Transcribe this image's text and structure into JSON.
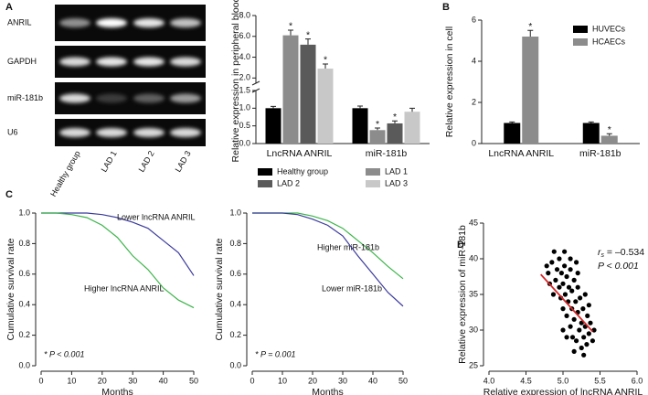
{
  "panel_labels": [
    "A",
    "B",
    "C",
    "D"
  ],
  "gel": {
    "rows": [
      "ANRIL",
      "GAPDH",
      "miR-181b",
      "U6"
    ],
    "lanes": [
      "Healthy group",
      "LAD 1",
      "LAD 2",
      "LAD 3"
    ]
  },
  "chart_data": [
    {
      "type": "bar",
      "ylabel": "Relative expression in peripheral blood",
      "categories": [
        "LncRNA ANRIL",
        "miR-181b"
      ],
      "y_segments": [
        {
          "ylim": [
            0,
            1.5
          ],
          "yticks": [
            {
              "value": 0,
              "label": "0.0"
            },
            {
              "value": 0.5,
              "label": "0.5"
            },
            {
              "value": 1,
              "label": "1.0"
            },
            {
              "value": 1.5,
              "label": "1.5"
            }
          ]
        },
        {
          "ylim": [
            1.5,
            8
          ],
          "yticks": [
            {
              "value": 2,
              "label": "2.0"
            },
            {
              "value": 4,
              "label": "4.0"
            },
            {
              "value": 6,
              "label": "6.0"
            },
            {
              "value": 8,
              "label": "8.0"
            }
          ]
        }
      ],
      "series": [
        {
          "name": "Healthy group",
          "color": "#000000",
          "values": [
            1.0,
            1.0
          ],
          "errors": [
            0.05,
            0.06
          ]
        },
        {
          "name": "LAD 1",
          "color": "#8c8c8c",
          "values": [
            6.1,
            0.38
          ],
          "errors": [
            0.5,
            0.06
          ],
          "annotations": [
            "*",
            "*"
          ]
        },
        {
          "name": "LAD 2",
          "color": "#5a5a5a",
          "values": [
            5.2,
            0.57
          ],
          "errors": [
            0.55,
            0.07
          ],
          "annotations": [
            "*",
            "*"
          ]
        },
        {
          "name": "LAD 3",
          "color": "#c8c8c8",
          "values": [
            2.9,
            0.9
          ],
          "errors": [
            0.45,
            0.1
          ],
          "annotations": [
            "*",
            null
          ]
        }
      ],
      "legend": "bottom"
    },
    {
      "type": "bar",
      "ylabel": "Relative expression in cell",
      "categories": [
        "LncRNA ANRIL",
        "miR-181b"
      ],
      "ylim": [
        0,
        6
      ],
      "yticks": [
        0,
        2,
        4,
        6
      ],
      "series": [
        {
          "name": "HUVECs",
          "color": "#000000",
          "values": [
            1.0,
            1.0
          ],
          "errors": [
            0.05,
            0.05
          ]
        },
        {
          "name": "HCAECs",
          "color": "#8c8c8c",
          "values": [
            5.2,
            0.38
          ],
          "errors": [
            0.3,
            0.1
          ],
          "annotations": [
            "*",
            "*"
          ]
        }
      ],
      "legend": "top-right"
    },
    {
      "type": "line",
      "xlabel": "Months",
      "ylabel": "Cumulative survival rate",
      "x": [
        0,
        5,
        10,
        15,
        20,
        25,
        30,
        35,
        40,
        45,
        50
      ],
      "xlim": [
        0,
        50
      ],
      "xticks": [
        0,
        10,
        20,
        30,
        40,
        50
      ],
      "ylim": [
        0,
        1
      ],
      "yticks": [
        {
          "value": 0,
          "label": "0.0"
        },
        {
          "value": 0.2,
          "label": "0.2"
        },
        {
          "value": 0.4,
          "label": "0.4"
        },
        {
          "value": 0.6,
          "label": "0.6"
        },
        {
          "value": 0.8,
          "label": "0.8"
        },
        {
          "value": 1,
          "label": "1.0"
        }
      ],
      "series": [
        {
          "name": "Lower lncRNA ANRIL",
          "color": "#3b3b9e",
          "values": [
            1,
            1,
            1,
            1,
            0.99,
            0.97,
            0.94,
            0.9,
            0.82,
            0.74,
            0.59
          ]
        },
        {
          "name": "Higher lncRNA ANRIL",
          "color": "#3cb54a",
          "values": [
            1,
            1,
            0.99,
            0.97,
            0.92,
            0.84,
            0.72,
            0.63,
            0.51,
            0.43,
            0.38
          ]
        }
      ],
      "note": "* P < 0.001"
    },
    {
      "type": "line",
      "xlabel": "Months",
      "ylabel": "Cumulative survival rate",
      "x": [
        0,
        5,
        10,
        15,
        20,
        25,
        30,
        35,
        40,
        45,
        50
      ],
      "xlim": [
        0,
        50
      ],
      "xticks": [
        0,
        10,
        20,
        30,
        40,
        50
      ],
      "ylim": [
        0,
        1
      ],
      "yticks": [
        {
          "value": 0,
          "label": "0.0"
        },
        {
          "value": 0.2,
          "label": "0.2"
        },
        {
          "value": 0.4,
          "label": "0.4"
        },
        {
          "value": 0.6,
          "label": "0.6"
        },
        {
          "value": 0.8,
          "label": "0.8"
        },
        {
          "value": 1,
          "label": "1.0"
        }
      ],
      "series": [
        {
          "name": "Higher miR-181b",
          "color": "#3cb54a",
          "values": [
            1,
            1,
            1,
            1,
            0.98,
            0.95,
            0.9,
            0.82,
            0.74,
            0.65,
            0.57
          ]
        },
        {
          "name": "Lower miR-181b",
          "color": "#3b3b9e",
          "values": [
            1,
            1,
            1,
            0.99,
            0.96,
            0.92,
            0.85,
            0.72,
            0.6,
            0.48,
            0.39
          ]
        }
      ],
      "note": "* P = 0.001"
    },
    {
      "type": "scatter",
      "xlabel": "Relative expression of lncRNA ANRIL",
      "ylabel": "Relative expression of miR-181b",
      "xlim": [
        4,
        6
      ],
      "xticks": [
        {
          "value": 4,
          "label": "4.0"
        },
        {
          "value": 4.5,
          "label": "4.5"
        },
        {
          "value": 5,
          "label": "5.0"
        },
        {
          "value": 5.5,
          "label": "5.5"
        },
        {
          "value": 6,
          "label": "6.0"
        }
      ],
      "ylim": [
        25,
        45
      ],
      "yticks": [
        25,
        30,
        35,
        40,
        45
      ],
      "color": "#000000",
      "x": [
        4.85,
        4.88,
        4.9,
        4.92,
        4.95,
        4.95,
        4.97,
        4.98,
        5.0,
        5.0,
        5.02,
        5.03,
        5.05,
        5.05,
        5.07,
        5.08,
        5.1,
        5.1,
        5.12,
        5.12,
        5.13,
        5.15,
        5.15,
        5.17,
        5.18,
        5.2,
        5.2,
        5.22,
        5.23,
        5.25,
        5.25,
        5.27,
        5.28,
        5.3,
        5.3,
        5.32,
        5.33,
        5.35,
        5.37,
        5.4,
        4.8,
        4.82,
        5.0,
        5.05,
        5.1,
        5.15,
        5.2,
        5.28,
        5.35,
        4.78,
        4.87,
        5.02,
        5.18,
        5.42
      ],
      "y": [
        39.5,
        41,
        37,
        38.5,
        36,
        40,
        34.5,
        38,
        36.5,
        33,
        39,
        35,
        37.5,
        32,
        34,
        36,
        30.5,
        38.5,
        33,
        35.5,
        29,
        37,
        31.5,
        34,
        28.5,
        36,
        32.5,
        30,
        34.5,
        27.5,
        31,
        33,
        29,
        35,
        30.5,
        28,
        32,
        29.5,
        31,
        28.5,
        38,
        36.5,
        30,
        29,
        40,
        27,
        38,
        26.5,
        33.5,
        39,
        35,
        41,
        39.5,
        30
      ],
      "fit_line": {
        "x": [
          4.7,
          5.4
        ],
        "y": [
          37.8,
          29.8
        ],
        "color": "#d62728"
      },
      "stats": {
        "r": "r",
        "r_sub": "s",
        "r_value": " = –0.534",
        "p": "P < 0.001"
      }
    }
  ]
}
